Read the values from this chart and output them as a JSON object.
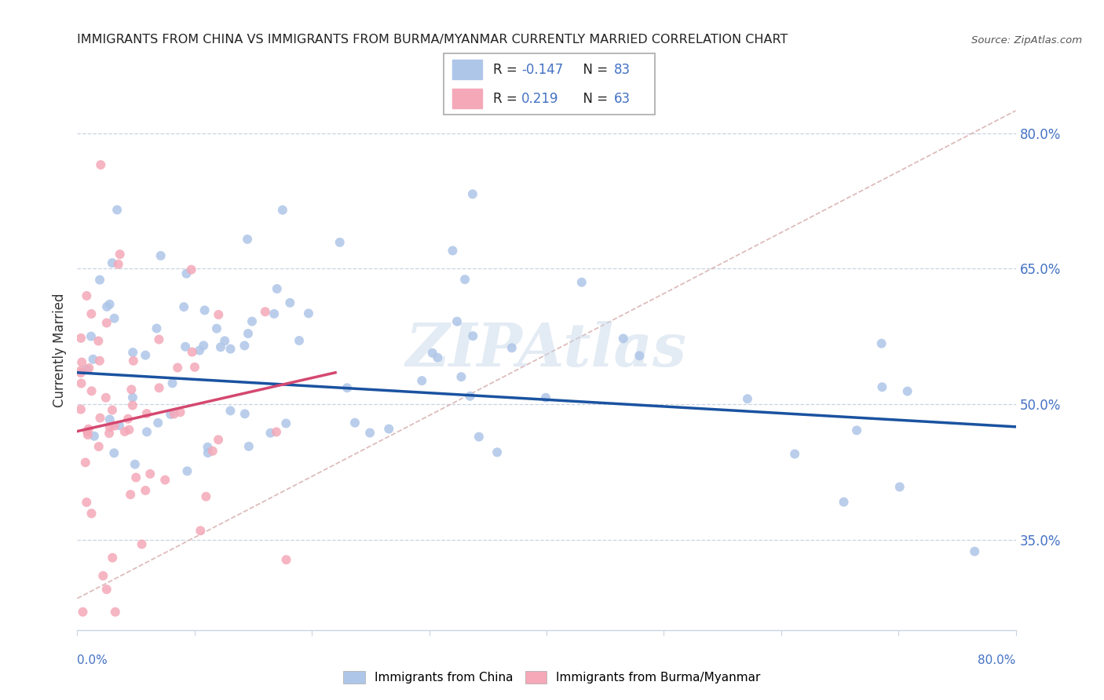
{
  "title": "IMMIGRANTS FROM CHINA VS IMMIGRANTS FROM BURMA/MYANMAR CURRENTLY MARRIED CORRELATION CHART",
  "source": "Source: ZipAtlas.com",
  "ylabel": "Currently Married",
  "ytick_vals": [
    0.35,
    0.5,
    0.65,
    0.8
  ],
  "ytick_labels": [
    "35.0%",
    "50.0%",
    "65.0%",
    "80.0%"
  ],
  "xlim": [
    0.0,
    0.8
  ],
  "ylim": [
    0.25,
    0.87
  ],
  "china_R": -0.147,
  "china_N": 83,
  "burma_R": 0.219,
  "burma_N": 63,
  "china_color": "#aec6e8",
  "burma_color": "#f4a8b8",
  "china_line_color": "#1a52a0",
  "burma_line_color": "#d44870",
  "diagonal_color": "#d8b0b0",
  "grid_color": "#c8d4e0",
  "legend_china_label": "Immigrants from China",
  "legend_burma_label": "Immigrants from Burma/Myanmar",
  "watermark": "ZIPAtlas",
  "text_color": "#4472c4",
  "title_color": "#222222",
  "source_color": "#555555"
}
